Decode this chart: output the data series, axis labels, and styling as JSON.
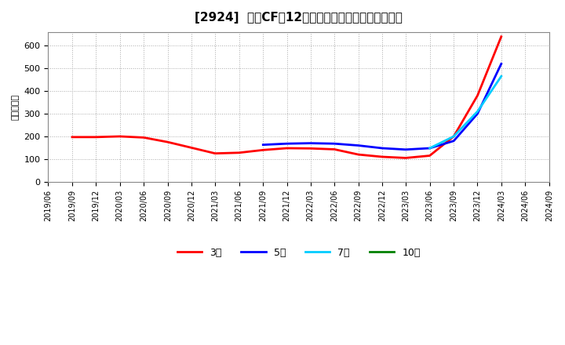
{
  "title": "[2924]  営業CFの12か月移動合計の標準偏差の推移",
  "ylabel": "（百万円）",
  "background_color": "#ffffff",
  "plot_bg_color": "#ffffff",
  "grid_color": "#aaaaaa",
  "ylim": [
    0,
    660
  ],
  "yticks": [
    0,
    100,
    200,
    300,
    400,
    500,
    600
  ],
  "series": {
    "3year": {
      "color": "#ff0000",
      "label": "3年",
      "dates": [
        "2019/09",
        "2019/12",
        "2020/03",
        "2020/06",
        "2020/09",
        "2020/12",
        "2021/03",
        "2021/06",
        "2021/09",
        "2021/12",
        "2022/03",
        "2022/06",
        "2022/09",
        "2022/12",
        "2023/03",
        "2023/06",
        "2023/09",
        "2023/12",
        "2024/03"
      ],
      "values": [
        197,
        197,
        200,
        195,
        175,
        150,
        125,
        128,
        140,
        148,
        147,
        143,
        120,
        110,
        105,
        115,
        200,
        380,
        640
      ]
    },
    "5year": {
      "color": "#0000ff",
      "label": "5年",
      "dates": [
        "2021/09",
        "2021/12",
        "2022/03",
        "2022/06",
        "2022/09",
        "2022/12",
        "2023/03",
        "2023/06",
        "2023/09",
        "2023/12",
        "2024/03"
      ],
      "values": [
        163,
        168,
        170,
        168,
        160,
        148,
        142,
        148,
        180,
        300,
        520
      ]
    },
    "7year": {
      "color": "#00ccff",
      "label": "7年",
      "dates": [
        "2023/06",
        "2023/09",
        "2023/12",
        "2024/03"
      ],
      "values": [
        148,
        200,
        310,
        465
      ]
    },
    "10year": {
      "color": "#008000",
      "label": "10年",
      "dates": [],
      "values": []
    }
  },
  "legend": {
    "entries": [
      "3年",
      "5年",
      "7年",
      "10年"
    ],
    "colors": [
      "#ff0000",
      "#0000ff",
      "#00ccff",
      "#008000"
    ]
  }
}
